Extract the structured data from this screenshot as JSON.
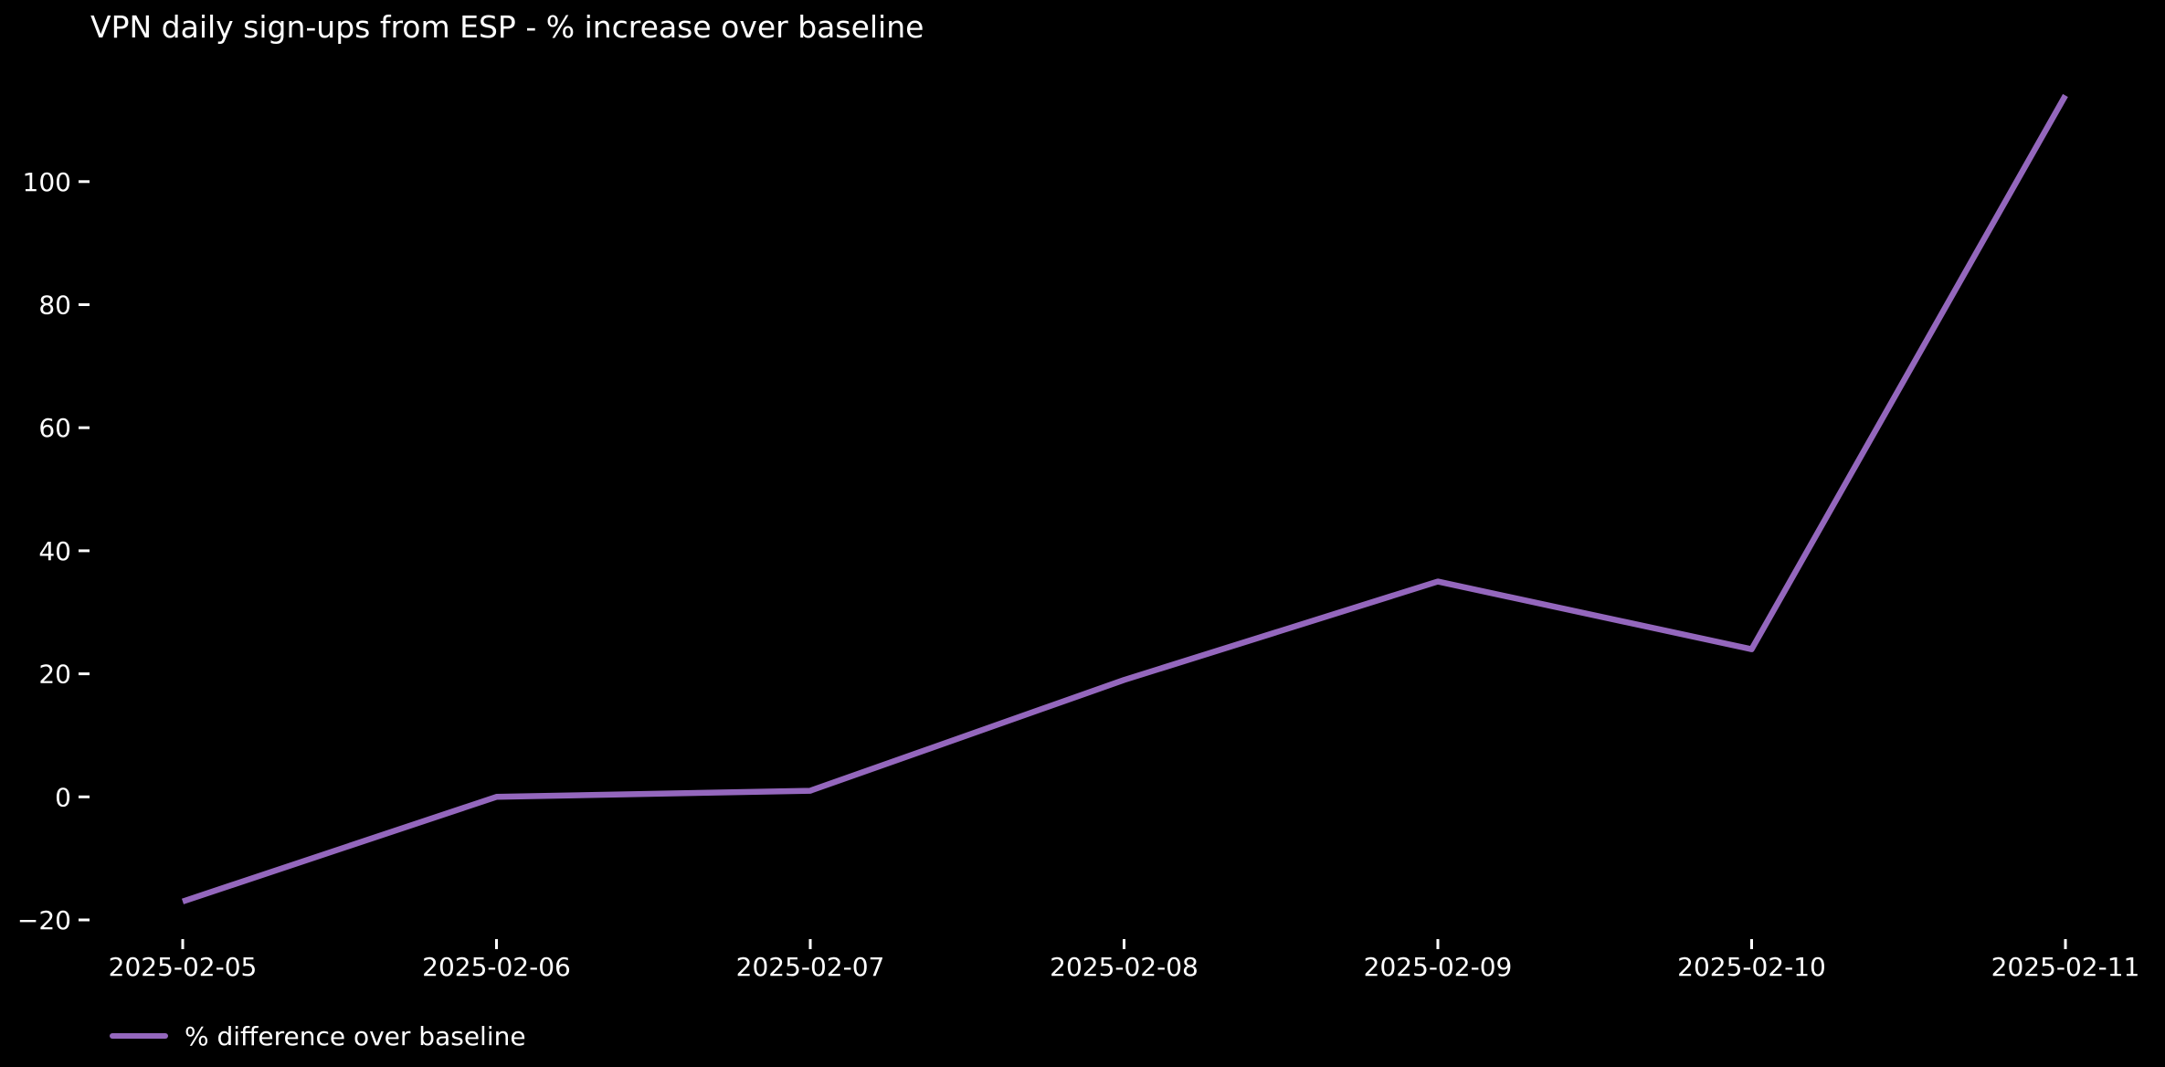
{
  "figure": {
    "background": "#000000"
  },
  "chart_data": {
    "type": "line",
    "title": "VPN daily sign-ups from ESP - % increase over baseline",
    "categories": [
      "2025-02-05",
      "2025-02-06",
      "2025-02-07",
      "2025-02-08",
      "2025-02-09",
      "2025-02-10",
      "2025-02-11"
    ],
    "series": [
      {
        "name": "% difference over baseline",
        "color": "#9467bd",
        "values": [
          -17,
          0,
          1,
          19,
          35,
          24,
          114
        ]
      }
    ],
    "xlabel": "",
    "ylabel": "",
    "yticks": [
      -20,
      0,
      20,
      40,
      60,
      80,
      100
    ],
    "ylim": [
      -23,
      121
    ],
    "grid": false,
    "legend": {
      "position": "lower-left",
      "entries": [
        "% difference over baseline"
      ]
    },
    "colors": {
      "background": "#000000",
      "text": "#ffffff",
      "tick": "#ffffff"
    }
  }
}
